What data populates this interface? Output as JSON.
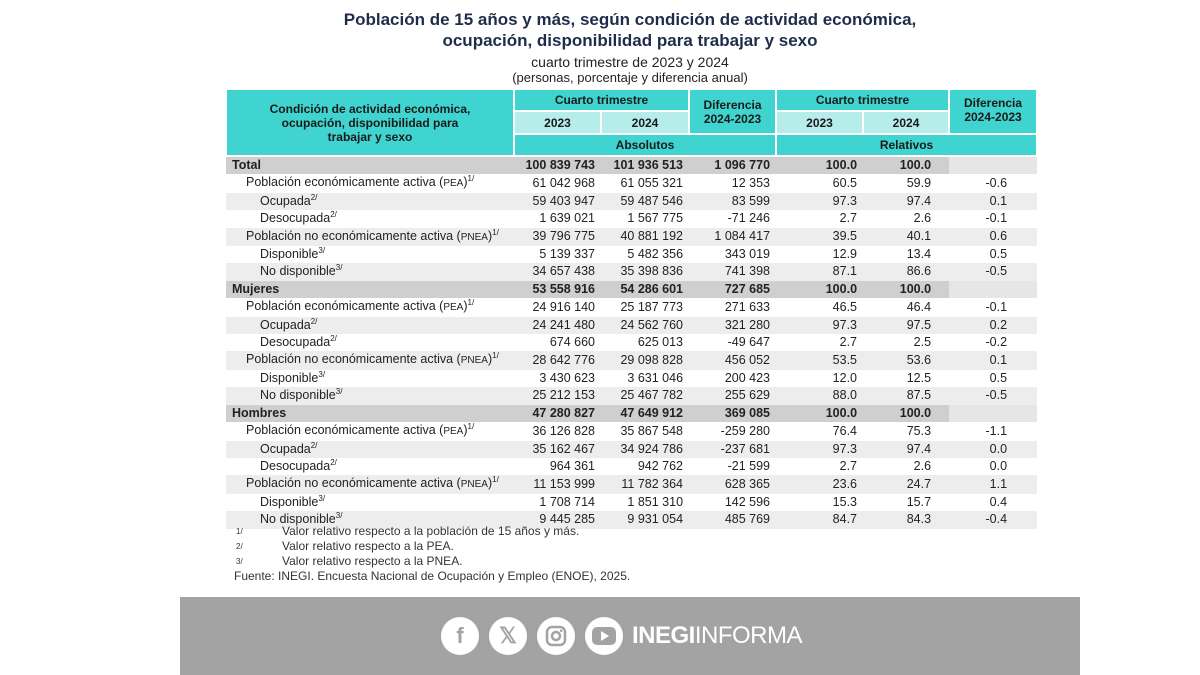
{
  "title_line1": "Población de 15 años y más, según condición de actividad económica,",
  "title_line2": "ocupación, disponibilidad para trabajar y sexo",
  "subtitle1": "cuarto trimestre de 2023 y 2024",
  "subtitle2": "(personas, porcentaje y diferencia anual)",
  "header": {
    "condition": "Condición de actividad económica, ocupación, disponibilidad para trabajar y sexo",
    "quarter": "Cuarto trimestre",
    "y2023": "2023",
    "y2024": "2024",
    "diff": "Diferencia 2024-2023",
    "absolute": "Absolutos",
    "relative": "Relativos"
  },
  "rows": [
    {
      "label": "Total",
      "level": 0,
      "v": [
        "100 839 743",
        "101 936 513",
        "1 096 770",
        "100.0",
        "100.0",
        ""
      ]
    },
    {
      "label": "Población económicamente activa (PEA)",
      "sup": "1/",
      "level": 1,
      "v": [
        "61 042 968",
        "61 055 321",
        "12 353",
        "60.5",
        "59.9",
        "-0.6"
      ]
    },
    {
      "label": "Ocupada",
      "sup": "2/",
      "level": 2,
      "v": [
        "59 403 947",
        "59 487 546",
        "83 599",
        "97.3",
        "97.4",
        "0.1"
      ]
    },
    {
      "label": "Desocupada",
      "sup": "2/",
      "level": 2,
      "v": [
        "1 639 021",
        "1 567 775",
        "-71 246",
        "2.7",
        "2.6",
        "-0.1"
      ]
    },
    {
      "label": "Población no económicamente activa (PNEA)",
      "sup": "1/",
      "level": 1,
      "v": [
        "39 796 775",
        "40 881 192",
        "1 084 417",
        "39.5",
        "40.1",
        "0.6"
      ]
    },
    {
      "label": "Disponible",
      "sup": "3/",
      "level": 2,
      "v": [
        "5 139 337",
        "5 482 356",
        "343 019",
        "12.9",
        "13.4",
        "0.5"
      ]
    },
    {
      "label": "No disponible",
      "sup": "3/",
      "level": 2,
      "v": [
        "34 657 438",
        "35 398 836",
        "741 398",
        "87.1",
        "86.6",
        "-0.5"
      ]
    },
    {
      "label": "Mujeres",
      "level": 0,
      "v": [
        "53 558 916",
        "54 286 601",
        "727 685",
        "100.0",
        "100.0",
        ""
      ]
    },
    {
      "label": "Población económicamente activa (PEA)",
      "sup": "1/",
      "level": 1,
      "v": [
        "24 916 140",
        "25 187 773",
        "271 633",
        "46.5",
        "46.4",
        "-0.1"
      ]
    },
    {
      "label": "Ocupada",
      "sup": "2/",
      "level": 2,
      "v": [
        "24 241 480",
        "24 562 760",
        "321 280",
        "97.3",
        "97.5",
        "0.2"
      ]
    },
    {
      "label": "Desocupada",
      "sup": "2/",
      "level": 2,
      "v": [
        "674 660",
        "625 013",
        "-49 647",
        "2.7",
        "2.5",
        "-0.2"
      ]
    },
    {
      "label": "Población no económicamente activa (PNEA)",
      "sup": "1/",
      "level": 1,
      "v": [
        "28 642 776",
        "29 098 828",
        "456 052",
        "53.5",
        "53.6",
        "0.1"
      ]
    },
    {
      "label": "Disponible",
      "sup": "3/",
      "level": 2,
      "v": [
        "3 430 623",
        "3 631 046",
        "200 423",
        "12.0",
        "12.5",
        "0.5"
      ]
    },
    {
      "label": "No disponible",
      "sup": "3/",
      "level": 2,
      "v": [
        "25 212 153",
        "25 467 782",
        "255 629",
        "88.0",
        "87.5",
        "-0.5"
      ]
    },
    {
      "label": "Hombres",
      "level": 0,
      "v": [
        "47 280 827",
        "47 649 912",
        "369 085",
        "100.0",
        "100.0",
        ""
      ]
    },
    {
      "label": "Población económicamente activa (PEA)",
      "sup": "1/",
      "level": 1,
      "v": [
        "36 126 828",
        "35 867 548",
        "-259 280",
        "76.4",
        "75.3",
        "-1.1"
      ]
    },
    {
      "label": "Ocupada",
      "sup": "2/",
      "level": 2,
      "v": [
        "35 162 467",
        "34 924 786",
        "-237 681",
        "97.3",
        "97.4",
        "0.0"
      ]
    },
    {
      "label": "Desocupada",
      "sup": "2/",
      "level": 2,
      "v": [
        "964 361",
        "942 762",
        "-21 599",
        "2.7",
        "2.6",
        "0.0"
      ]
    },
    {
      "label": "Población no económicamente activa (PNEA)",
      "sup": "1/",
      "level": 1,
      "v": [
        "11 153 999",
        "11 782 364",
        "628 365",
        "23.6",
        "24.7",
        "1.1"
      ]
    },
    {
      "label": "Disponible",
      "sup": "3/",
      "level": 2,
      "v": [
        "1 708 714",
        "1 851 310",
        "142 596",
        "15.3",
        "15.7",
        "0.4"
      ]
    },
    {
      "label": "No disponible",
      "sup": "3/",
      "level": 2,
      "v": [
        "9 445 285",
        "9 931 054",
        "485 769",
        "84.7",
        "84.3",
        "-0.4"
      ]
    }
  ],
  "notes": [
    {
      "key": "1/",
      "text": "Valor relativo respecto a la población de 15 años y más."
    },
    {
      "key": "2/",
      "text": "Valor relativo respecto a la PEA."
    },
    {
      "key": "3/",
      "text": "Valor relativo respecto a la PNEA."
    }
  ],
  "source": "Fuente: INEGI. Encuesta Nacional de Ocupación y Empleo (ENOE), 2025.",
  "footer": {
    "icons": [
      "facebook-icon",
      "x-icon",
      "instagram-icon",
      "youtube-icon"
    ],
    "brand_bold": "INEGI",
    "brand_light": "INFORMA"
  },
  "colors": {
    "header": "#3fd4cf",
    "header_light": "#b6ecea",
    "group_row": "#cfcfcf",
    "banner": "#a3a3a3"
  }
}
